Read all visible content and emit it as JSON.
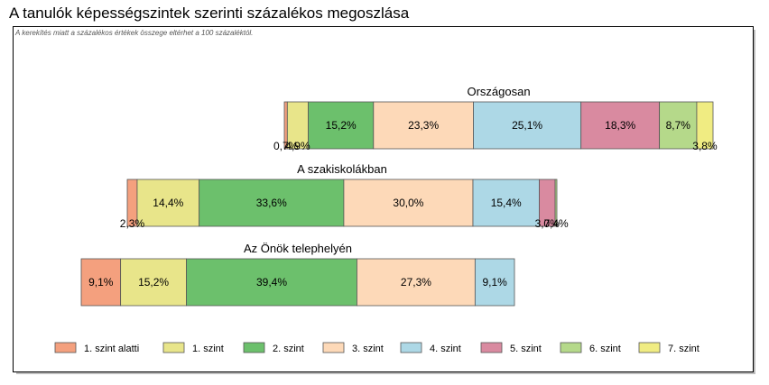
{
  "title": "A tanulók képességszintek szerinti százalékos megoszlása",
  "note": "A kerekítés miatt a  százalékos értékek összege eltérhet a 100 százaléktól.",
  "chart_data": {
    "type": "bar",
    "orientation": "horizontal",
    "stacked": true,
    "legend_position": "bottom",
    "legend": [
      {
        "name": "1. szint alatti",
        "color": "#f4a07e"
      },
      {
        "name": "1. szint",
        "color": "#e8e58a"
      },
      {
        "name": "2. szint",
        "color": "#6cc06c"
      },
      {
        "name": "3. szint",
        "color": "#fdd9b8"
      },
      {
        "name": "4. szint",
        "color": "#add8e6"
      },
      {
        "name": "5. szint",
        "color": "#d98aa0"
      },
      {
        "name": "6. szint",
        "color": "#b5d98a"
      },
      {
        "name": "7. szint",
        "color": "#f0ec82"
      }
    ],
    "bars": [
      {
        "name": "Országosan",
        "values": [
          0.7,
          4.9,
          15.2,
          23.3,
          25.1,
          18.3,
          8.7,
          3.8
        ],
        "labels": [
          "0,7%",
          "4,9%",
          "15,2%",
          "23,3%",
          "25,1%",
          "18,3%",
          "8,7%",
          "3,8%"
        ]
      },
      {
        "name": "A szakiskolákban",
        "values": [
          2.3,
          14.4,
          33.6,
          30.0,
          15.4,
          3.7,
          0.4,
          0
        ],
        "labels": [
          "2,3%",
          "14,4%",
          "33,6%",
          "30,0%",
          "15,4%",
          "3,7%",
          "0,4%",
          ""
        ]
      },
      {
        "name": "Az Önök telephelyén",
        "values": [
          9.1,
          15.2,
          39.4,
          27.3,
          9.1,
          0,
          0,
          0
        ],
        "labels": [
          "9,1%",
          "15,2%",
          "39,4%",
          "27,3%",
          "9,1%",
          "",
          "",
          ""
        ]
      }
    ]
  }
}
